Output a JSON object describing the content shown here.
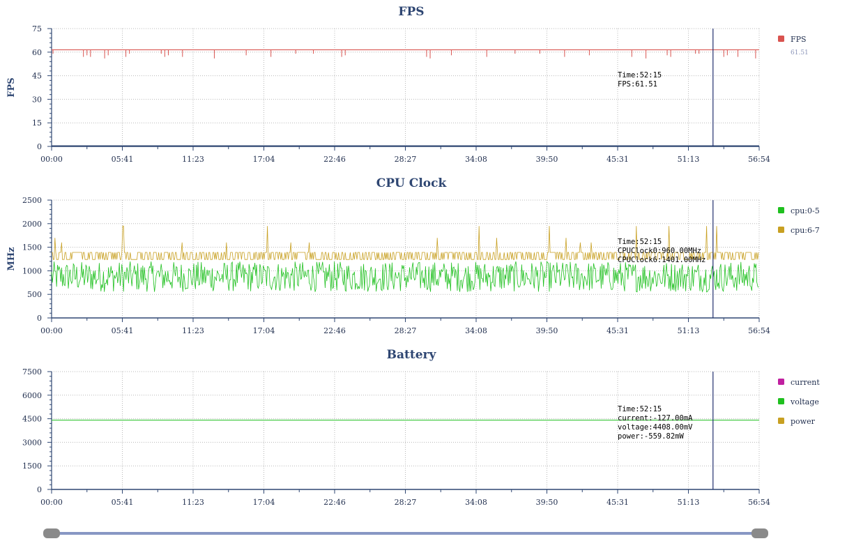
{
  "x_ticks": [
    "00:00",
    "05:41",
    "11:23",
    "17:04",
    "22:46",
    "28:27",
    "34:08",
    "39:50",
    "45:31",
    "51:13",
    "56:54"
  ],
  "cursor_time_fraction": 0.92,
  "chart_data": [
    {
      "type": "line",
      "title": "FPS",
      "ylabel": "FPS",
      "ylim": [
        0,
        75
      ],
      "y_ticks": [
        "0",
        "15",
        "30",
        "45",
        "60",
        "75"
      ],
      "grid": true,
      "legend_position": "right",
      "series": [
        {
          "name": "FPS",
          "color": "#d9534f",
          "baseline": 61.5,
          "dips": [
            59,
            57,
            58,
            57,
            56,
            58,
            57,
            59
          ],
          "legend_value": "61.51"
        }
      ],
      "tooltip": [
        "Time:52:15",
        "FPS:61.51"
      ]
    },
    {
      "type": "line",
      "title": "CPU Clock",
      "ylabel": "MHz",
      "ylim": [
        0,
        2500
      ],
      "y_ticks": [
        "0",
        "500",
        "1000",
        "1500",
        "2000",
        "2500"
      ],
      "grid": true,
      "legend_position": "right",
      "series": [
        {
          "name": "cpu:0-5",
          "color": "#1fc01f",
          "range": [
            550,
            1200
          ]
        },
        {
          "name": "cpu:6-7",
          "color": "#c8a022",
          "range": [
            1200,
            1400
          ],
          "peaks": [
            1600,
            1700,
            1950
          ]
        }
      ],
      "tooltip": [
        "Time:52:15",
        "CPUClock0:960.00MHz",
        "CPUClock6:1401.00MHz"
      ]
    },
    {
      "type": "line",
      "title": "Battery",
      "ylabel": "",
      "ylim": [
        0,
        7500
      ],
      "y_ticks": [
        "0",
        "1500",
        "3000",
        "4500",
        "6000",
        "7500"
      ],
      "grid": true,
      "legend_position": "right",
      "series": [
        {
          "name": "current",
          "color": "#c020a0"
        },
        {
          "name": "voltage",
          "color": "#1fc01f",
          "value": 4408
        },
        {
          "name": "power",
          "color": "#c8a022"
        }
      ],
      "tooltip": [
        "Time:52:15",
        "current:-127.00mA",
        "voltage:4408.00mV",
        "power:-559.82mW"
      ]
    }
  ]
}
